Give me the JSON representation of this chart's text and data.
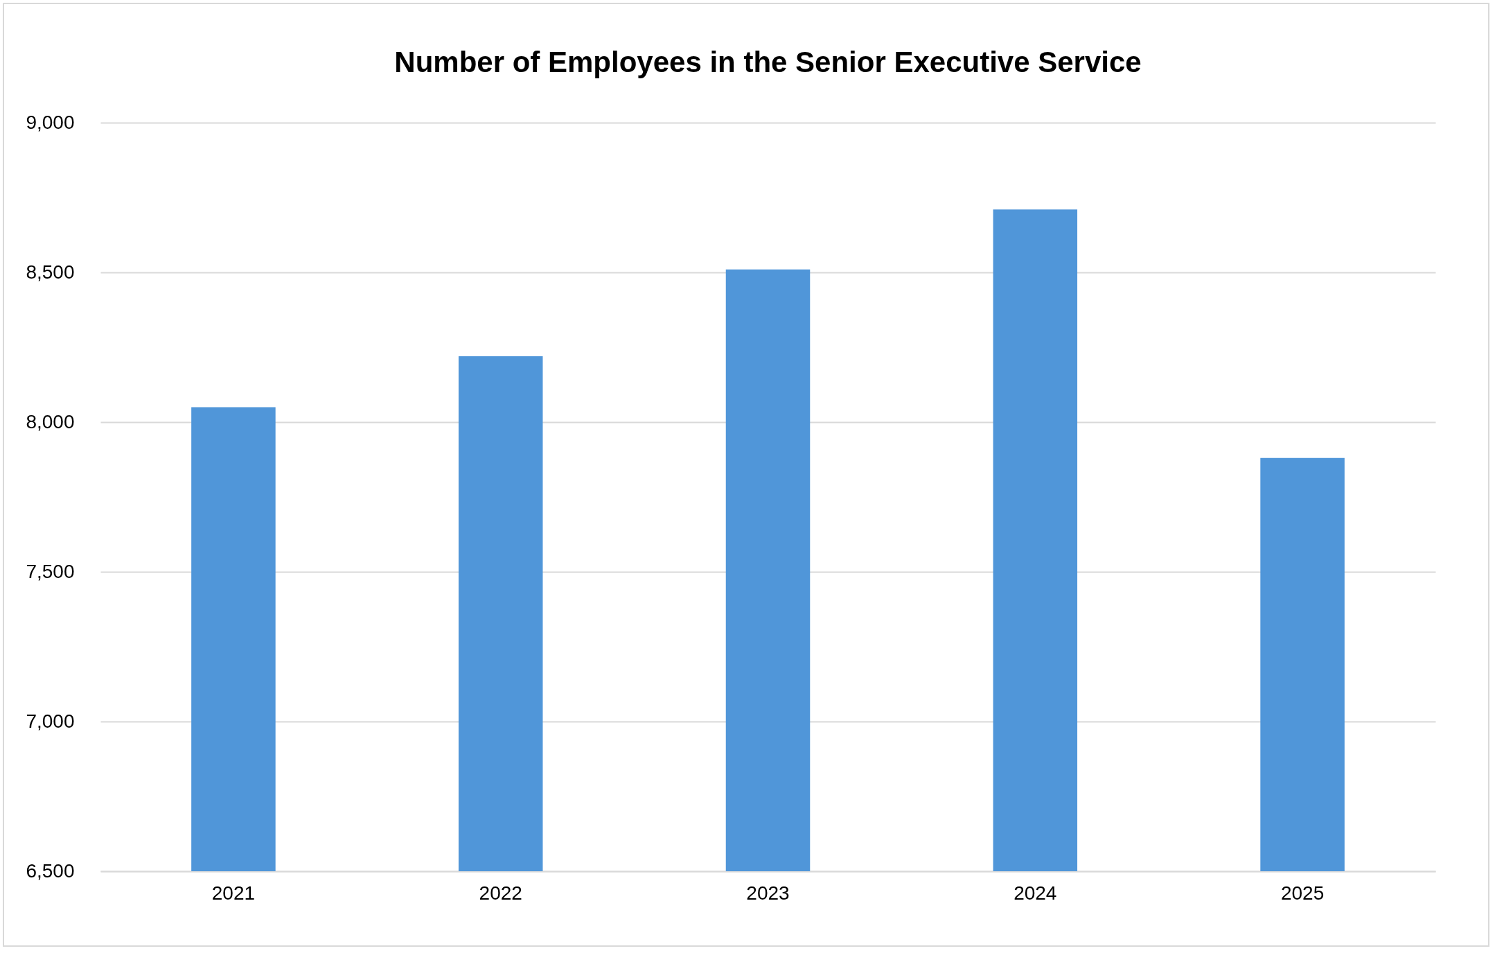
{
  "chart_data": {
    "type": "bar",
    "title": "Number of Employees in the Senior Executive Service",
    "categories": [
      "2021",
      "2022",
      "2023",
      "2024",
      "2025"
    ],
    "values": [
      8050,
      8220,
      8510,
      8710,
      7880
    ],
    "color": "#5096d9",
    "ylim": [
      6500,
      9000
    ],
    "yticks": [
      {
        "value": 6500,
        "label": "6,500"
      },
      {
        "value": 7000,
        "label": "7,000"
      },
      {
        "value": 7500,
        "label": "7,500"
      },
      {
        "value": 8000,
        "label": "8,000"
      },
      {
        "value": 8500,
        "label": "8,500"
      },
      {
        "value": 9000,
        "label": "9,000"
      }
    ],
    "grid": "y"
  }
}
